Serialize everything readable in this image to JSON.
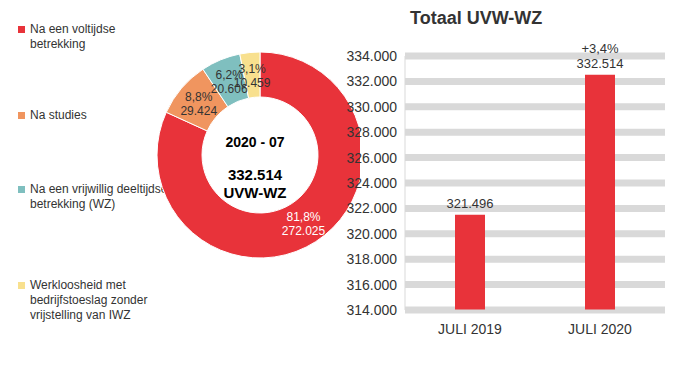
{
  "chart_data": [
    {
      "type": "pie",
      "categories": [
        "Na een voltijdse betrekking",
        "Na studies",
        "Na een vrijwillig deeltijdse betrekking (WZ)",
        "Werkloosheid met bedrijfstoeslag zonder vrijstelling van IWZ"
      ],
      "values": [
        272025,
        29424,
        20606,
        10459
      ],
      "value_labels": [
        "272.025",
        "29.424",
        "20.606",
        "10.459"
      ],
      "percentages": [
        81.8,
        8.8,
        6.2,
        3.1
      ],
      "percentage_labels": [
        "81,8%",
        "8,8%",
        "6,2%",
        "3,1%"
      ],
      "colors": [
        "#e8333a",
        "#f0955f",
        "#7fbfbf",
        "#f8e08e"
      ],
      "data_labels": true,
      "legend": "left",
      "annotations": [
        "2020 - 07",
        "332.514",
        "UVW-WZ"
      ]
    },
    {
      "type": "bar",
      "title": "Totaal UVW-WZ",
      "categories": [
        "JULI 2019",
        "JULI 2020"
      ],
      "values": [
        321496,
        332514
      ],
      "value_labels": [
        "321.496",
        "332.514"
      ],
      "color": "#e8333a",
      "ylim": [
        314000,
        334000
      ],
      "yticks": [
        {
          "value": 314000,
          "label": "314.000"
        },
        {
          "value": 316000,
          "label": "316.000"
        },
        {
          "value": 318000,
          "label": "318.000"
        },
        {
          "value": 320000,
          "label": "320.000"
        },
        {
          "value": 322000,
          "label": "322.000"
        },
        {
          "value": 324000,
          "label": "324.000"
        },
        {
          "value": 326000,
          "label": "326.000"
        },
        {
          "value": 328000,
          "label": "328.000"
        },
        {
          "value": 330000,
          "label": "330.000"
        },
        {
          "value": 332000,
          "label": "332.000"
        },
        {
          "value": 334000,
          "label": "334.000"
        }
      ],
      "grid": true,
      "data_labels": true,
      "annotations": [
        {
          "category": "JULI 2020",
          "text": "+3,4%"
        }
      ]
    }
  ]
}
